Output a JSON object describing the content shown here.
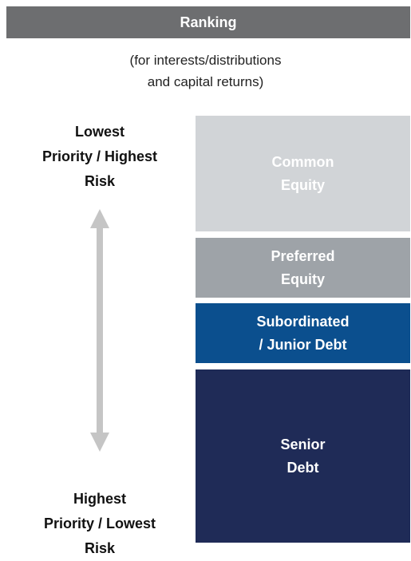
{
  "header": {
    "title": "Ranking"
  },
  "subtitle": [
    "(for interests/distributions",
    "and capital returns)"
  ],
  "top_label": [
    "Lowest",
    "Priority / Highest",
    "Risk"
  ],
  "bottom_label": [
    "Highest",
    "Priority / Lowest",
    "Risk"
  ],
  "tranches": [
    {
      "lines": [
        "Common",
        "Equity"
      ]
    },
    {
      "lines": [
        "Preferred",
        "Equity"
      ]
    },
    {
      "lines": [
        "Subordinated",
        "/ Junior Debt"
      ]
    },
    {
      "lines": [
        "Senior",
        "Debt"
      ]
    }
  ]
}
